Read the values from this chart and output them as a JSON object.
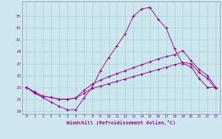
{
  "xlabel": "Windchill (Refroidissement éolien,°C)",
  "background_color": "#cce8ee",
  "line_color": "#990099",
  "grid_color": "#aacccc",
  "hours": [
    0,
    1,
    2,
    3,
    4,
    5,
    6,
    7,
    8,
    9,
    10,
    11,
    12,
    13,
    14,
    15,
    16,
    17,
    18,
    19,
    20,
    21,
    22,
    23
  ],
  "series1": [
    23.0,
    22.0,
    21.3,
    20.5,
    19.8,
    19.2,
    19.2,
    21.2,
    23.0,
    25.8,
    28.0,
    30.0,
    32.0,
    35.0,
    36.2,
    36.5,
    34.5,
    33.0,
    29.5,
    27.0,
    26.5,
    24.5,
    23.0,
    23.0
  ],
  "series2": [
    23.0,
    22.2,
    21.5,
    21.3,
    21.0,
    21.0,
    21.2,
    22.5,
    23.5,
    24.2,
    24.8,
    25.3,
    25.8,
    26.3,
    26.8,
    27.3,
    27.8,
    28.2,
    28.5,
    29.2,
    27.5,
    26.0,
    25.0,
    23.0
  ],
  "series3": [
    23.0,
    22.2,
    21.5,
    21.3,
    21.0,
    21.0,
    21.2,
    22.0,
    22.8,
    23.2,
    23.6,
    24.0,
    24.4,
    24.8,
    25.2,
    25.6,
    26.0,
    26.4,
    26.8,
    27.2,
    27.0,
    25.5,
    24.5,
    22.8
  ],
  "ylim": [
    18.5,
    37.5
  ],
  "yticks": [
    19,
    21,
    23,
    25,
    27,
    29,
    31,
    33,
    35
  ],
  "xticks": [
    0,
    1,
    2,
    3,
    4,
    5,
    6,
    7,
    8,
    9,
    10,
    11,
    12,
    13,
    14,
    15,
    16,
    17,
    18,
    19,
    20,
    21,
    22,
    23
  ]
}
